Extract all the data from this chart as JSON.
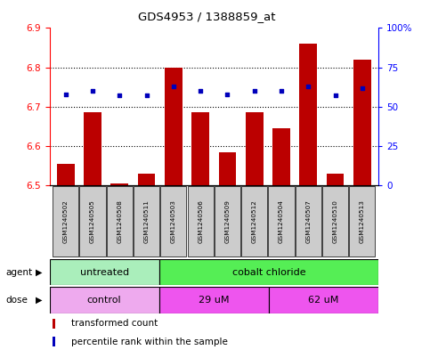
{
  "title": "GDS4953 / 1388859_at",
  "samples": [
    "GSM1240502",
    "GSM1240505",
    "GSM1240508",
    "GSM1240511",
    "GSM1240503",
    "GSM1240506",
    "GSM1240509",
    "GSM1240512",
    "GSM1240504",
    "GSM1240507",
    "GSM1240510",
    "GSM1240513"
  ],
  "bar_values": [
    6.555,
    6.685,
    6.505,
    6.53,
    6.8,
    6.685,
    6.585,
    6.685,
    6.645,
    6.86,
    6.53,
    6.82
  ],
  "bar_base": 6.5,
  "percentile_values": [
    58,
    60,
    57,
    57,
    63,
    60,
    58,
    60,
    60,
    63,
    57,
    62
  ],
  "ylim_left": [
    6.5,
    6.9
  ],
  "ylim_right": [
    0,
    100
  ],
  "yticks_left": [
    6.5,
    6.6,
    6.7,
    6.8,
    6.9
  ],
  "yticks_right": [
    0,
    25,
    50,
    75,
    100
  ],
  "ytick_labels_right": [
    "0",
    "25",
    "50",
    "75",
    "100%"
  ],
  "bar_color": "#bb0000",
  "percentile_color": "#0000bb",
  "grid_color": "#000000",
  "agent_groups": [
    {
      "label": "untreated",
      "start": 0,
      "end": 4,
      "color": "#aaeebb"
    },
    {
      "label": "cobalt chloride",
      "start": 4,
      "end": 12,
      "color": "#55ee55"
    }
  ],
  "dose_groups": [
    {
      "label": "control",
      "start": 0,
      "end": 4,
      "color": "#eeaaee"
    },
    {
      "label": "29 uM",
      "start": 4,
      "end": 8,
      "color": "#ee55ee"
    },
    {
      "label": "62 uM",
      "start": 8,
      "end": 12,
      "color": "#ee55ee"
    }
  ],
  "legend_bar_label": "transformed count",
  "legend_dot_label": "percentile rank within the sample",
  "label_agent": "agent",
  "label_dose": "dose",
  "sample_bg_color": "#cccccc",
  "fig_bg": "#ffffff"
}
